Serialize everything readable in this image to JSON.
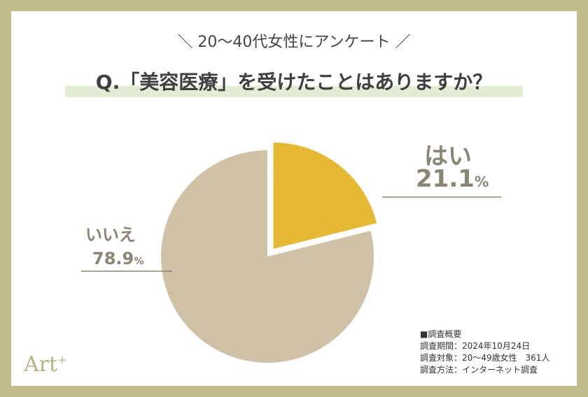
{
  "subtitle": "＼ 20〜40代女性にアンケート ／",
  "question": "Q.「美容医療」を受けたことはありますか？",
  "chart_data": {
    "type": "pie",
    "slices": [
      {
        "label": "はい",
        "value": 21.1,
        "pct_text": "21.1",
        "unit": "%",
        "color": "#e5b934"
      },
      {
        "label": "いいえ",
        "value": 78.9,
        "pct_text": "78.9",
        "unit": "%",
        "color": "#cfc2a8"
      }
    ]
  },
  "summary": {
    "heading": "■調査概要",
    "period": "調査期間：2024年10月24日",
    "target": "調査対象：20〜49歳女性　361人",
    "method": "調査方法：インターネット調査"
  },
  "logo": {
    "text": "Art",
    "sup": "+"
  }
}
